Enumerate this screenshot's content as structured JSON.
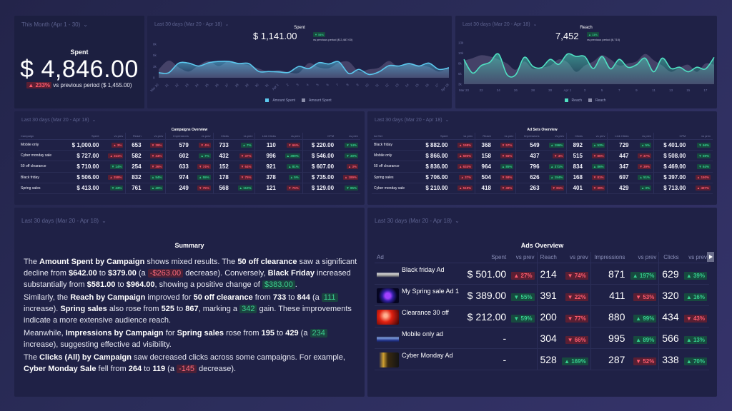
{
  "colors": {
    "background": "#2b2d5a",
    "panel": "#1f2146",
    "spent_line": "#5bc8ee",
    "reach_line": "#4fe0c2",
    "bad": "#ff5c6e",
    "good": "#36d08f"
  },
  "kpi": {
    "period": "This Month (Apr 1 - 30)",
    "title": "Spent",
    "value": "$ 4,846.00",
    "change": "▲ 233%",
    "change_tone": "bad",
    "comparison": "vs previous period ($ 1,455.00)"
  },
  "spent_chart": {
    "period": "Last 30 days (Mar 20 - Apr 18)",
    "title": "Spent",
    "value": "$ 1,141.00",
    "change": "▼ 54%",
    "comparison": "vs previous period ($ 2,487.00)",
    "legend": [
      "Amount Spent",
      "Amount Spent"
    ]
  },
  "reach_chart": {
    "period": "Last 30 days (Mar 20 - Apr 18)",
    "title": "Reach",
    "value": "7,452",
    "change": "▲ 11%",
    "comparison": "vs previous period (6,710)",
    "legend": [
      "Reach",
      "Reach"
    ]
  },
  "chart_data": [
    {
      "type": "area",
      "ylim": [
        0,
        8000
      ],
      "yticks": [
        "0",
        "3k",
        "5k",
        "8k"
      ],
      "x": [
        "Mar 20",
        "21",
        "22",
        "23",
        "24",
        "25",
        "26",
        "27",
        "28",
        "29",
        "30",
        "31",
        "Apr 1",
        "2",
        "3",
        "4",
        "5",
        "6",
        "7",
        "8",
        "9",
        "10",
        "11",
        "12",
        "13",
        "14",
        "15",
        "16",
        "17",
        "Apr 18"
      ],
      "series": [
        {
          "name": "Amount Spent",
          "values": [
            1200,
            1200,
            3500,
            3500,
            2800,
            3600,
            3900,
            3900,
            3400,
            3400,
            1500,
            1500,
            1400,
            1300,
            2700,
            2200,
            3600,
            3300,
            3800,
            1000,
            2000,
            800,
            1400,
            2900,
            2800,
            3400,
            2800,
            3500,
            2000,
            2400
          ]
        },
        {
          "name": "Amount Spent",
          "values": [
            2000,
            4100,
            2500,
            1500,
            3000,
            4000,
            2800,
            4000,
            3500,
            3000,
            2200,
            1500,
            1800,
            1300,
            1200,
            3500,
            2500,
            2300,
            3600,
            3800,
            1500,
            2000,
            2400,
            4000,
            2500,
            3500,
            3000,
            2600,
            1500,
            2600
          ]
        }
      ]
    },
    {
      "type": "area",
      "ylim": [
        2500,
        12500
      ],
      "yticks": [
        "3k",
        "5k",
        "8k",
        "10k",
        "13k"
      ],
      "x": [
        "Mar 20",
        "21",
        "22",
        "23",
        "24",
        "25",
        "26",
        "27",
        "28",
        "29",
        "30",
        "31",
        "Apr 1",
        "2",
        "3",
        "4",
        "5",
        "6",
        "7",
        "8",
        "9",
        "10",
        "11",
        "12",
        "13",
        "14",
        "15",
        "16",
        "17",
        "18"
      ],
      "xticks": [
        "Mar 20",
        "22",
        "24",
        "26",
        "28",
        "30",
        "Apr 1",
        "3",
        "5",
        "7",
        "9",
        "11",
        "13",
        "15",
        "17"
      ],
      "series": [
        {
          "name": "Reach",
          "values": [
            8500,
            5200,
            7000,
            7800,
            9800,
            4800,
            4800,
            9000,
            6800,
            6500,
            8500,
            7300,
            9800,
            9200,
            9200,
            6300,
            9200,
            6200,
            8500,
            6600,
            7200,
            8800,
            5500,
            8800,
            6300,
            6600,
            5500,
            6600,
            6200,
            9000
          ]
        },
        {
          "name": "Reach",
          "values": [
            8200,
            8800,
            9500,
            9200,
            8500,
            7500,
            6000,
            8000,
            6200,
            6500,
            7000,
            8500,
            7800,
            5500,
            7000,
            8000,
            9500,
            8500,
            7000,
            7500,
            8000,
            9800,
            8300,
            7000,
            5500,
            6500,
            7200,
            5500,
            7500,
            7200
          ]
        }
      ]
    }
  ],
  "campaigns": {
    "period": "Last 30 days (Mar 20 - Apr 18)",
    "title": "Campaigns Overview",
    "headers": [
      "Campaign",
      "Spent",
      "vs prev",
      "Reach",
      "vs prev",
      "Impressions",
      "vs prev",
      "Clicks",
      "vs prev",
      "Link Clicks",
      "vs prev",
      "CPM",
      "vs prev"
    ],
    "rows": [
      {
        "name": "Mobile only",
        "vals": [
          "$ 1,000.00",
          "653",
          "579",
          "733",
          "110",
          "$ 220.00"
        ],
        "badges": [
          [
            "▲ 3%",
            "bad"
          ],
          [
            "▼ 39%",
            "bad"
          ],
          [
            "▼ 4%",
            "bad"
          ],
          [
            "▲ 7%",
            "good"
          ],
          [
            "▼ 66%",
            "bad"
          ],
          [
            "▼ 14%",
            "good"
          ]
        ]
      },
      {
        "name": "Cyber monday sale",
        "vals": [
          "$ 727.00",
          "582",
          "602",
          "432",
          "996",
          "$ 546.00"
        ],
        "badges": [
          [
            "▲ 311%",
            "bad"
          ],
          [
            "▼ 34%",
            "bad"
          ],
          [
            "▲ 7%",
            "good"
          ],
          [
            "▼ 37%",
            "bad"
          ],
          [
            "▲ 399%",
            "good"
          ],
          [
            "▼ 30%",
            "good"
          ]
        ]
      },
      {
        "name": "50 off clearance",
        "vals": [
          "$ 710.00",
          "254",
          "633",
          "152",
          "921",
          "$ 607.00"
        ],
        "badges": [
          [
            "▼ 14%",
            "good"
          ],
          [
            "▼ 36%",
            "bad"
          ],
          [
            "▼ 74%",
            "bad"
          ],
          [
            "▼ 64%",
            "bad"
          ],
          [
            "▲ 81%",
            "good"
          ],
          [
            "▲ 3%",
            "bad"
          ]
        ]
      },
      {
        "name": "Black friday",
        "vals": [
          "$ 506.00",
          "832",
          "974",
          "178",
          "378",
          "$ 735.00"
        ],
        "badges": [
          [
            "▲ 258%",
            "bad"
          ],
          [
            "▲ 54%",
            "good"
          ],
          [
            "▲ 55%",
            "good"
          ],
          [
            "▼ 75%",
            "bad"
          ],
          [
            "▲ 5%",
            "good"
          ],
          [
            "▲ 189%",
            "bad"
          ]
        ]
      },
      {
        "name": "Spring sales",
        "vals": [
          "$ 413.00",
          "761",
          "249",
          "568",
          "121",
          "$ 129.00"
        ],
        "badges": [
          [
            "▼ 43%",
            "good"
          ],
          [
            "▲ 40%",
            "good"
          ],
          [
            "▼ 75%",
            "bad"
          ],
          [
            "▲ 110%",
            "good"
          ],
          [
            "▼ 75%",
            "bad"
          ],
          [
            "▼ 85%",
            "good"
          ]
        ]
      }
    ]
  },
  "adsets": {
    "period": "Last 30 days (Mar 20 - Apr 18)",
    "title": "Ad Sets Overview",
    "headers": [
      "Ad Set",
      "Spent",
      "vs prev",
      "Reach",
      "vs prev",
      "Impressions",
      "vs prev",
      "Clicks",
      "vs prev",
      "Link Clicks",
      "vs prev",
      "CPM",
      "vs prev"
    ],
    "rows": [
      {
        "name": "Black friday",
        "vals": [
          "$ 882.00",
          "368",
          "549",
          "892",
          "729",
          "$ 401.00"
        ],
        "badges": [
          [
            "▲ 198%",
            "bad"
          ],
          [
            "▼ 57%",
            "bad"
          ],
          [
            "▲ 196%",
            "good"
          ],
          [
            "▲ 53%",
            "good"
          ],
          [
            "▲ 5%",
            "good"
          ],
          [
            "▼ 66%",
            "good"
          ]
        ]
      },
      {
        "name": "Mobile only",
        "vals": [
          "$ 866.00",
          "158",
          "437",
          "515",
          "447",
          "$ 508.00"
        ],
        "badges": [
          [
            "▲ 590%",
            "bad"
          ],
          [
            "▼ 66%",
            "bad"
          ],
          [
            "▼ 4%",
            "bad"
          ],
          [
            "▼ 86%",
            "bad"
          ],
          [
            "▼ 37%",
            "bad"
          ],
          [
            "▼ 59%",
            "good"
          ]
        ]
      },
      {
        "name": "50 off clearance",
        "vals": [
          "$ 836.00",
          "964",
          "796",
          "834",
          "347",
          "$ 469.00"
        ],
        "badges": [
          [
            "▲ 634%",
            "bad"
          ],
          [
            "▲ 85%",
            "good"
          ],
          [
            "▲ 371%",
            "good"
          ],
          [
            "▲ 86%",
            "good"
          ],
          [
            "▼ 39%",
            "bad"
          ],
          [
            "▼ 64%",
            "good"
          ]
        ]
      },
      {
        "name": "Spring sales",
        "vals": [
          "$ 706.00",
          "504",
          "626",
          "168",
          "697",
          "$ 397.00"
        ],
        "badges": [
          [
            "▲ 37%",
            "bad"
          ],
          [
            "▼ 58%",
            "bad"
          ],
          [
            "▲ 154%",
            "good"
          ],
          [
            "▼ 81%",
            "bad"
          ],
          [
            "▲ 51%",
            "good"
          ],
          [
            "▲ 150%",
            "bad"
          ]
        ]
      },
      {
        "name": "Cyber monday sale",
        "vals": [
          "$ 210.00",
          "418",
          "263",
          "401",
          "429",
          "$ 713.00"
        ],
        "badges": [
          [
            "▲ 519%",
            "bad"
          ],
          [
            "▼ 49%",
            "bad"
          ],
          [
            "▼ 81%",
            "bad"
          ],
          [
            "▼ 39%",
            "bad"
          ],
          [
            "▲ 3%",
            "good"
          ],
          [
            "▲ 497%",
            "bad"
          ]
        ]
      }
    ]
  },
  "summary": {
    "period": "Last 30 days (Mar 20 - Apr 18)",
    "title": "Summary"
  },
  "ads": {
    "period": "Last 30 days (Mar 20 - Apr 18)",
    "title": "Ads Overview",
    "headers": [
      "Ad",
      "Spent",
      "vs prev",
      "Reach",
      "vs prev",
      "Impressions",
      "vs prev",
      "Clicks",
      "vs prev"
    ],
    "rows": [
      {
        "name": "Black friday Ad",
        "thumb": "wings",
        "spent": "$ 501.00",
        "spent_badge": [
          "▲ 27%",
          "bad"
        ],
        "reach": "214",
        "reach_badge": [
          "▼ 74%",
          "bad"
        ],
        "impressions": "871",
        "impressions_badge": [
          "▲ 197%",
          "good"
        ],
        "clicks": "629",
        "clicks_badge": [
          "▲ 39%",
          "good"
        ]
      },
      {
        "name": "My Spring sale Ad 1",
        "thumb": "door",
        "spent": "$ 389.00",
        "spent_badge": [
          "▼ 55%",
          "good"
        ],
        "reach": "391",
        "reach_badge": [
          "▼ 22%",
          "bad"
        ],
        "impressions": "411",
        "impressions_badge": [
          "▼ 53%",
          "bad"
        ],
        "clicks": "320",
        "clicks_badge": [
          "▲ 16%",
          "good"
        ]
      },
      {
        "name": "Clearance 30 off",
        "thumb": "red",
        "spent": "$ 212.00",
        "spent_badge": [
          "▼ 59%",
          "good"
        ],
        "reach": "200",
        "reach_badge": [
          "▼ 77%",
          "bad"
        ],
        "impressions": "880",
        "impressions_badge": [
          "▲ 99%",
          "good"
        ],
        "clicks": "434",
        "clicks_badge": [
          "▼ 43%",
          "bad"
        ]
      },
      {
        "name": "Mobile only ad",
        "thumb": "banner",
        "spent": "-",
        "spent_badge": null,
        "reach": "304",
        "reach_badge": [
          "▼ 66%",
          "bad"
        ],
        "impressions": "995",
        "impressions_badge": [
          "▲ 89%",
          "good"
        ],
        "clicks": "566",
        "clicks_badge": [
          "▲ 13%",
          "good"
        ]
      },
      {
        "name": "Cyber Monday Ad",
        "thumb": "gold",
        "spent": "-",
        "spent_badge": null,
        "reach": "528",
        "reach_badge": [
          "▲ 169%",
          "good"
        ],
        "impressions": "287",
        "impressions_badge": [
          "▼ 52%",
          "bad"
        ],
        "clicks": "338",
        "clicks_badge": [
          "▲ 70%",
          "good"
        ]
      }
    ]
  },
  "icons": {
    "dropdown": "chevron-down-icon",
    "scroll": "chevron-right-icon"
  }
}
